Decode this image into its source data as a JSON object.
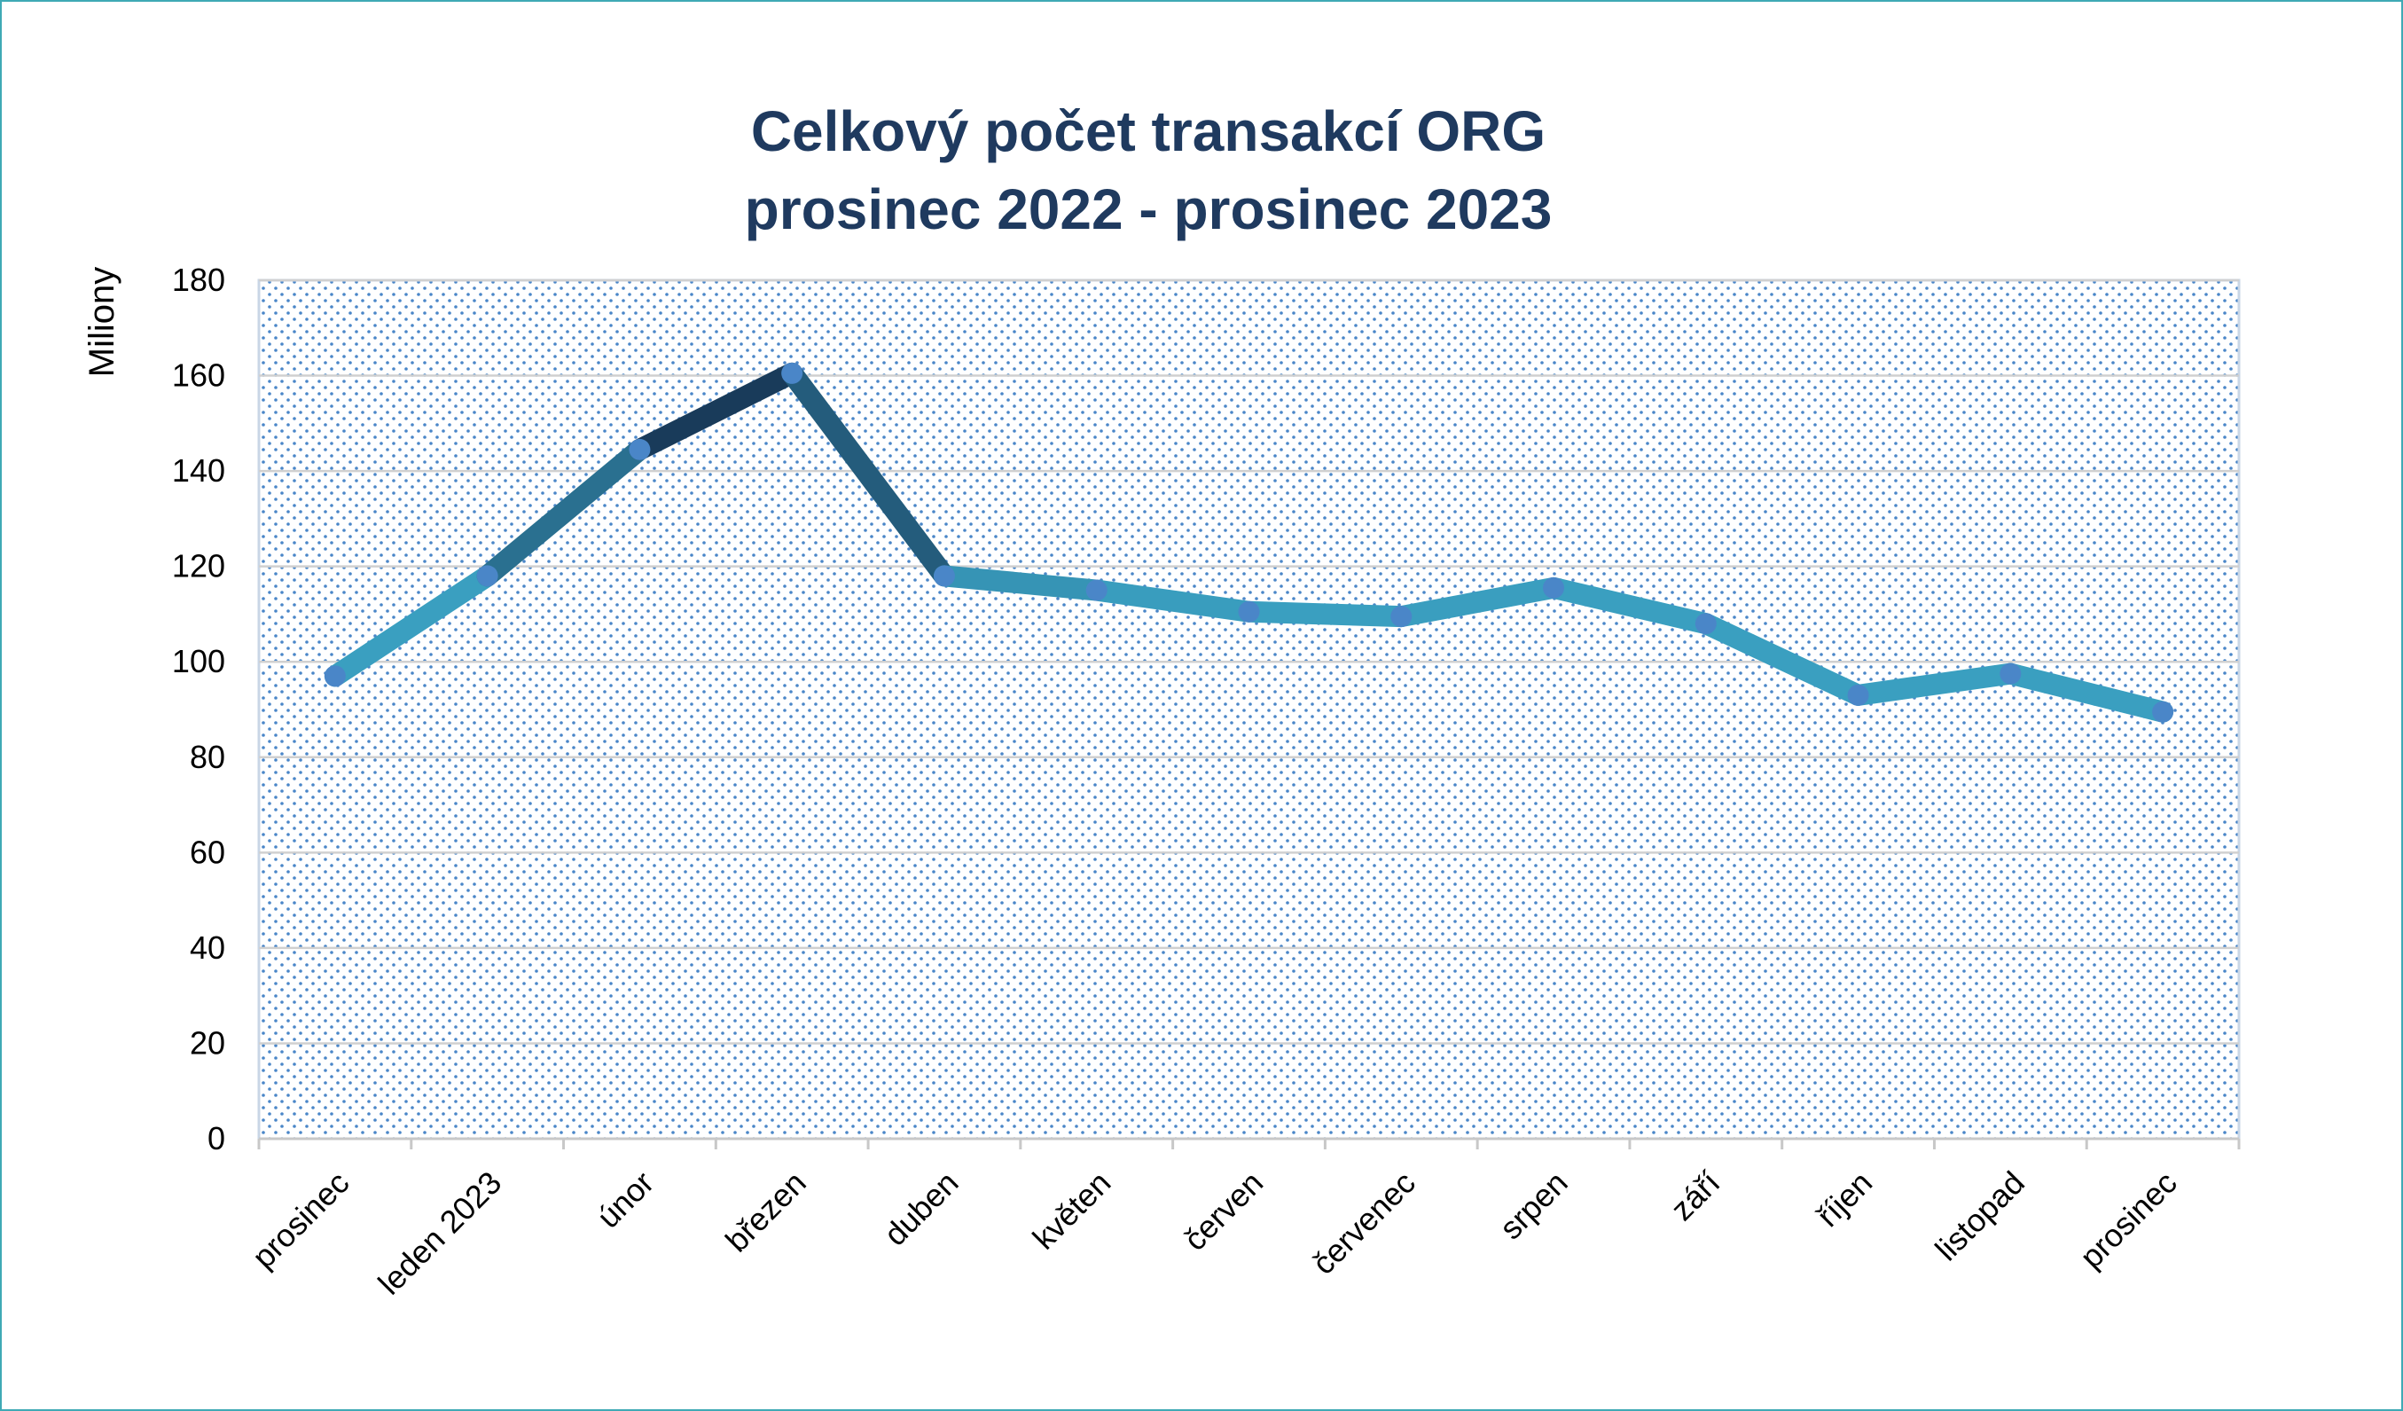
{
  "chart_data": {
    "type": "line",
    "title_line1": "Celkový počet transakcí ORG",
    "title_line2": "prosinec 2022 - prosinec 2023",
    "ylabel": "Miliony",
    "xlabel": "",
    "ylim": [
      0,
      180
    ],
    "yticks": [
      "0",
      "20",
      "40",
      "60",
      "80",
      "100",
      "120",
      "140",
      "160",
      "180"
    ],
    "categories": [
      "prosinec",
      "leden 2023",
      "únor",
      "březen",
      "duben",
      "květen",
      "červen",
      "červenec",
      "srpen",
      "září",
      "říjen",
      "listopad",
      "prosinec"
    ],
    "series": [
      {
        "values": [
          97,
          118,
          144.5,
          160.5,
          118,
          115,
          110.5,
          109.5,
          115.5,
          108,
          93,
          97.5,
          89.5
        ]
      }
    ],
    "grid": true,
    "legend": "none",
    "colors": {
      "title": "#1f3a5f",
      "line_light": "#3a9fc0",
      "line_dark": "#15304f",
      "marker": "#4a86c8",
      "dots": "#4a86c8",
      "gridline": "#d0d0d0",
      "frame": "#3fa9b5"
    }
  }
}
